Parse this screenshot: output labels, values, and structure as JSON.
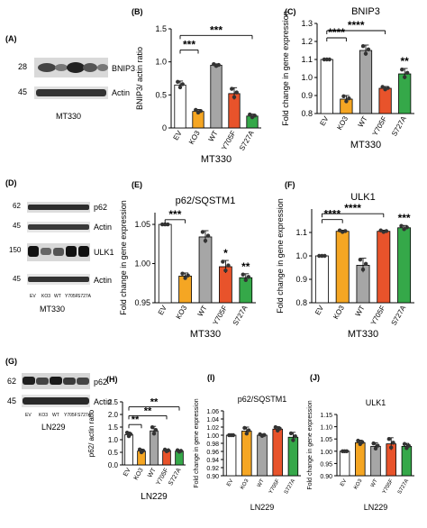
{
  "colors": {
    "EV": "#ffffff",
    "KO3": "#f5a623",
    "WT": "#a6a6a6",
    "Y705F": "#e8532b",
    "S727A": "#35a849",
    "dot": "#333333"
  },
  "blots": [
    {
      "panel": "(A)",
      "markers": [
        "28",
        "45"
      ],
      "labels": [
        "BNIP3",
        "Actin"
      ],
      "lanes": [],
      "cell_line": "MT330"
    },
    {
      "panel": "(D)",
      "markers": [
        "62",
        "45",
        "150",
        "45"
      ],
      "labels": [
        "p62",
        "Actin",
        "ULK1",
        "Actin"
      ],
      "lanes": [
        "EV",
        "KO3",
        "WT",
        "Y705F",
        "S727A"
      ],
      "cell_line": "MT330"
    },
    {
      "panel": "(G)",
      "markers": [
        "62",
        "45"
      ],
      "labels": [
        "p62",
        "Actin"
      ],
      "lanes": [
        "EV",
        "KO3",
        "WT",
        "Y705F",
        "S727A"
      ],
      "cell_line": "LN229"
    }
  ],
  "chart_data": [
    {
      "panel": "(B)",
      "type": "bar",
      "title": "",
      "ylabel": "BNIP3/ actin ratio",
      "xlabel": "MT330",
      "ylim": [
        0,
        1.5
      ],
      "yticks": [
        "0",
        "0.5",
        "1.0",
        "1.5"
      ],
      "categories": [
        "EV",
        "KO3",
        "WT",
        "Y705F",
        "S727A"
      ],
      "values": [
        0.65,
        0.25,
        0.95,
        0.52,
        0.18
      ],
      "errors": [
        0.06,
        0.03,
        0.02,
        0.09,
        0.03
      ],
      "significance": [
        {
          "label": "***",
          "from": "EV",
          "to": "KO3",
          "level": 1.18
        },
        {
          "label": "***",
          "from": "EV",
          "to": "S727A",
          "level": 1.4
        }
      ]
    },
    {
      "panel": "(C)",
      "type": "bar",
      "title": "BNIP3",
      "ylabel": "Fold change in gene expression",
      "xlabel": "MT330",
      "ylim": [
        0.8,
        1.3
      ],
      "yticks": [
        "0.8",
        "0.9",
        "1.0",
        "1.1",
        "1.2",
        "1.3"
      ],
      "categories": [
        "EV",
        "KO3",
        "WT",
        "Y705F",
        "S727A"
      ],
      "values": [
        1.1,
        0.88,
        1.15,
        0.94,
        1.02
      ],
      "errors": [
        0,
        0.02,
        0.03,
        0.01,
        0.03
      ],
      "stars": [
        "",
        "",
        "",
        "",
        "**"
      ],
      "significance": [
        {
          "label": "****",
          "from": "EV",
          "to": "KO3",
          "level": 1.22
        },
        {
          "label": "****",
          "from": "EV",
          "to": "Y705F",
          "level": 1.26
        }
      ]
    },
    {
      "panel": "(E)",
      "type": "bar",
      "title": "p62/SQSTM1",
      "ylabel": "Fold change in gene expression",
      "xlabel": "MT330",
      "ylim": [
        0.95,
        1.065
      ],
      "yticks": [
        "0.95",
        "1.00",
        "1.05"
      ],
      "categories": [
        "EV",
        "KO3",
        "WT",
        "Y705F",
        "S727A"
      ],
      "values": [
        1.05,
        0.984,
        1.034,
        0.996,
        0.982
      ],
      "errors": [
        0,
        0.004,
        0.008,
        0.008,
        0.005
      ],
      "stars": [
        "",
        "",
        "",
        "*",
        "**"
      ],
      "significance": [
        {
          "label": "***",
          "from": "EV",
          "to": "KO3",
          "level": 1.056
        }
      ]
    },
    {
      "panel": "(F)",
      "type": "bar",
      "title": "ULK1",
      "ylabel": "Fold change in gene expression",
      "xlabel": "MT330",
      "ylim": [
        0.8,
        1.2
      ],
      "yticks": [
        "0.8",
        "0.9",
        "1.0",
        "1.1"
      ],
      "categories": [
        "EV",
        "KO3",
        "WT",
        "Y705F",
        "S727A"
      ],
      "values": [
        1.0,
        1.105,
        0.96,
        1.105,
        1.12
      ],
      "errors": [
        0,
        0.005,
        0.03,
        0.005,
        0.01
      ],
      "stars": [
        "",
        "",
        "",
        "",
        "***"
      ],
      "significance": [
        {
          "label": "****",
          "from": "EV",
          "to": "KO3",
          "level": 1.155
        },
        {
          "label": "****",
          "from": "EV",
          "to": "Y705F",
          "level": 1.18
        }
      ]
    },
    {
      "panel": "(H)",
      "type": "bar",
      "title": "",
      "ylabel": "p62/ actin ratio",
      "xlabel": "LN229",
      "ylim": [
        0,
        2.5
      ],
      "yticks": [
        "0.0",
        "0.5",
        "1.0",
        "1.5",
        "2.0",
        "2.5"
      ],
      "categories": [
        "EV",
        "KO3",
        "WT",
        "Y705F",
        "S727A"
      ],
      "values": [
        1.2,
        0.55,
        1.35,
        0.57,
        0.55
      ],
      "errors": [
        0.1,
        0.08,
        0.18,
        0.05,
        0.04
      ],
      "significance": [
        {
          "label": "**",
          "from": "EV",
          "to": "KO3",
          "level": 1.6
        },
        {
          "label": "**",
          "from": "EV",
          "to": "Y705F",
          "level": 1.95
        },
        {
          "label": "**",
          "from": "EV",
          "to": "S727A",
          "level": 2.3
        }
      ]
    },
    {
      "panel": "(I)",
      "type": "bar",
      "title": "p62/SQSTM1",
      "ylabel": "Fold change in gene expression",
      "xlabel": "LN229",
      "ylim": [
        0.9,
        1.06
      ],
      "yticks": [
        "0.90",
        "0.92",
        "0.94",
        "0.96",
        "0.98",
        "1.00",
        "1.02",
        "1.04",
        "1.06"
      ],
      "categories": [
        "EV",
        "KO3",
        "WT",
        "Y705F",
        "S727A"
      ],
      "values": [
        1.0,
        1.01,
        1.0,
        1.015,
        0.995
      ],
      "errors": [
        0,
        0.01,
        0.003,
        0.006,
        0.012
      ],
      "significance": []
    },
    {
      "panel": "(J)",
      "type": "bar",
      "title": "ULK1",
      "ylabel": "Fold change in gene expression",
      "xlabel": "LN229",
      "ylim": [
        0.9,
        1.15
      ],
      "yticks": [
        "0.90",
        "0.95",
        "1.00",
        "1.05",
        "1.10",
        "1.15"
      ],
      "categories": [
        "EV",
        "KO3",
        "WT",
        "Y705F",
        "S727A"
      ],
      "values": [
        1.0,
        1.035,
        1.02,
        1.03,
        1.02
      ],
      "errors": [
        0,
        0.01,
        0.015,
        0.025,
        0.012
      ],
      "significance": []
    }
  ]
}
